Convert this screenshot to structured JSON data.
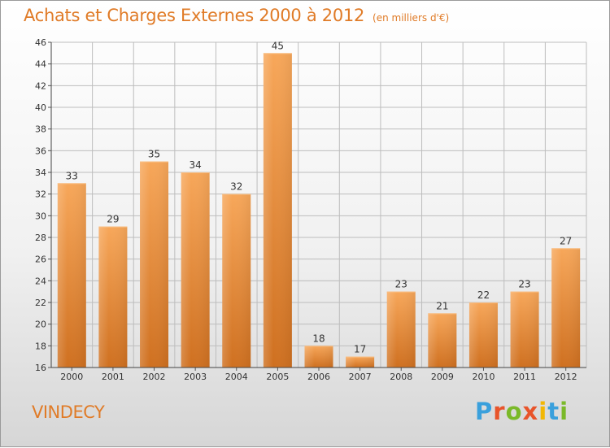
{
  "header": {
    "title": "Achats et Charges Externes 2000 à 2012",
    "subtitle": "(en milliers d'€)"
  },
  "footer": {
    "commune": "VINDECY",
    "brand": "Proxiti",
    "brand_colors": [
      "#3aa0dc",
      "#e8542a",
      "#7ab929",
      "#e8542a",
      "#f2b705",
      "#3aa0dc",
      "#7ab929"
    ]
  },
  "colors": {
    "title": "#e07b27",
    "bar_top": "#f7a75a",
    "bar_bottom": "#cf7020",
    "grid": "#bdbdbd"
  },
  "chart_data": {
    "type": "bar",
    "categories": [
      "2000",
      "2001",
      "2002",
      "2003",
      "2004",
      "2005",
      "2006",
      "2007",
      "2008",
      "2009",
      "2010",
      "2011",
      "2012"
    ],
    "values": [
      33,
      29,
      35,
      34,
      32,
      45,
      18,
      17,
      23,
      21,
      22,
      23,
      27
    ],
    "ylim": [
      16,
      46
    ],
    "yticks": [
      16,
      18,
      20,
      22,
      24,
      26,
      28,
      30,
      32,
      34,
      36,
      38,
      40,
      42,
      44,
      46
    ],
    "grid": true,
    "data_labels": true
  }
}
